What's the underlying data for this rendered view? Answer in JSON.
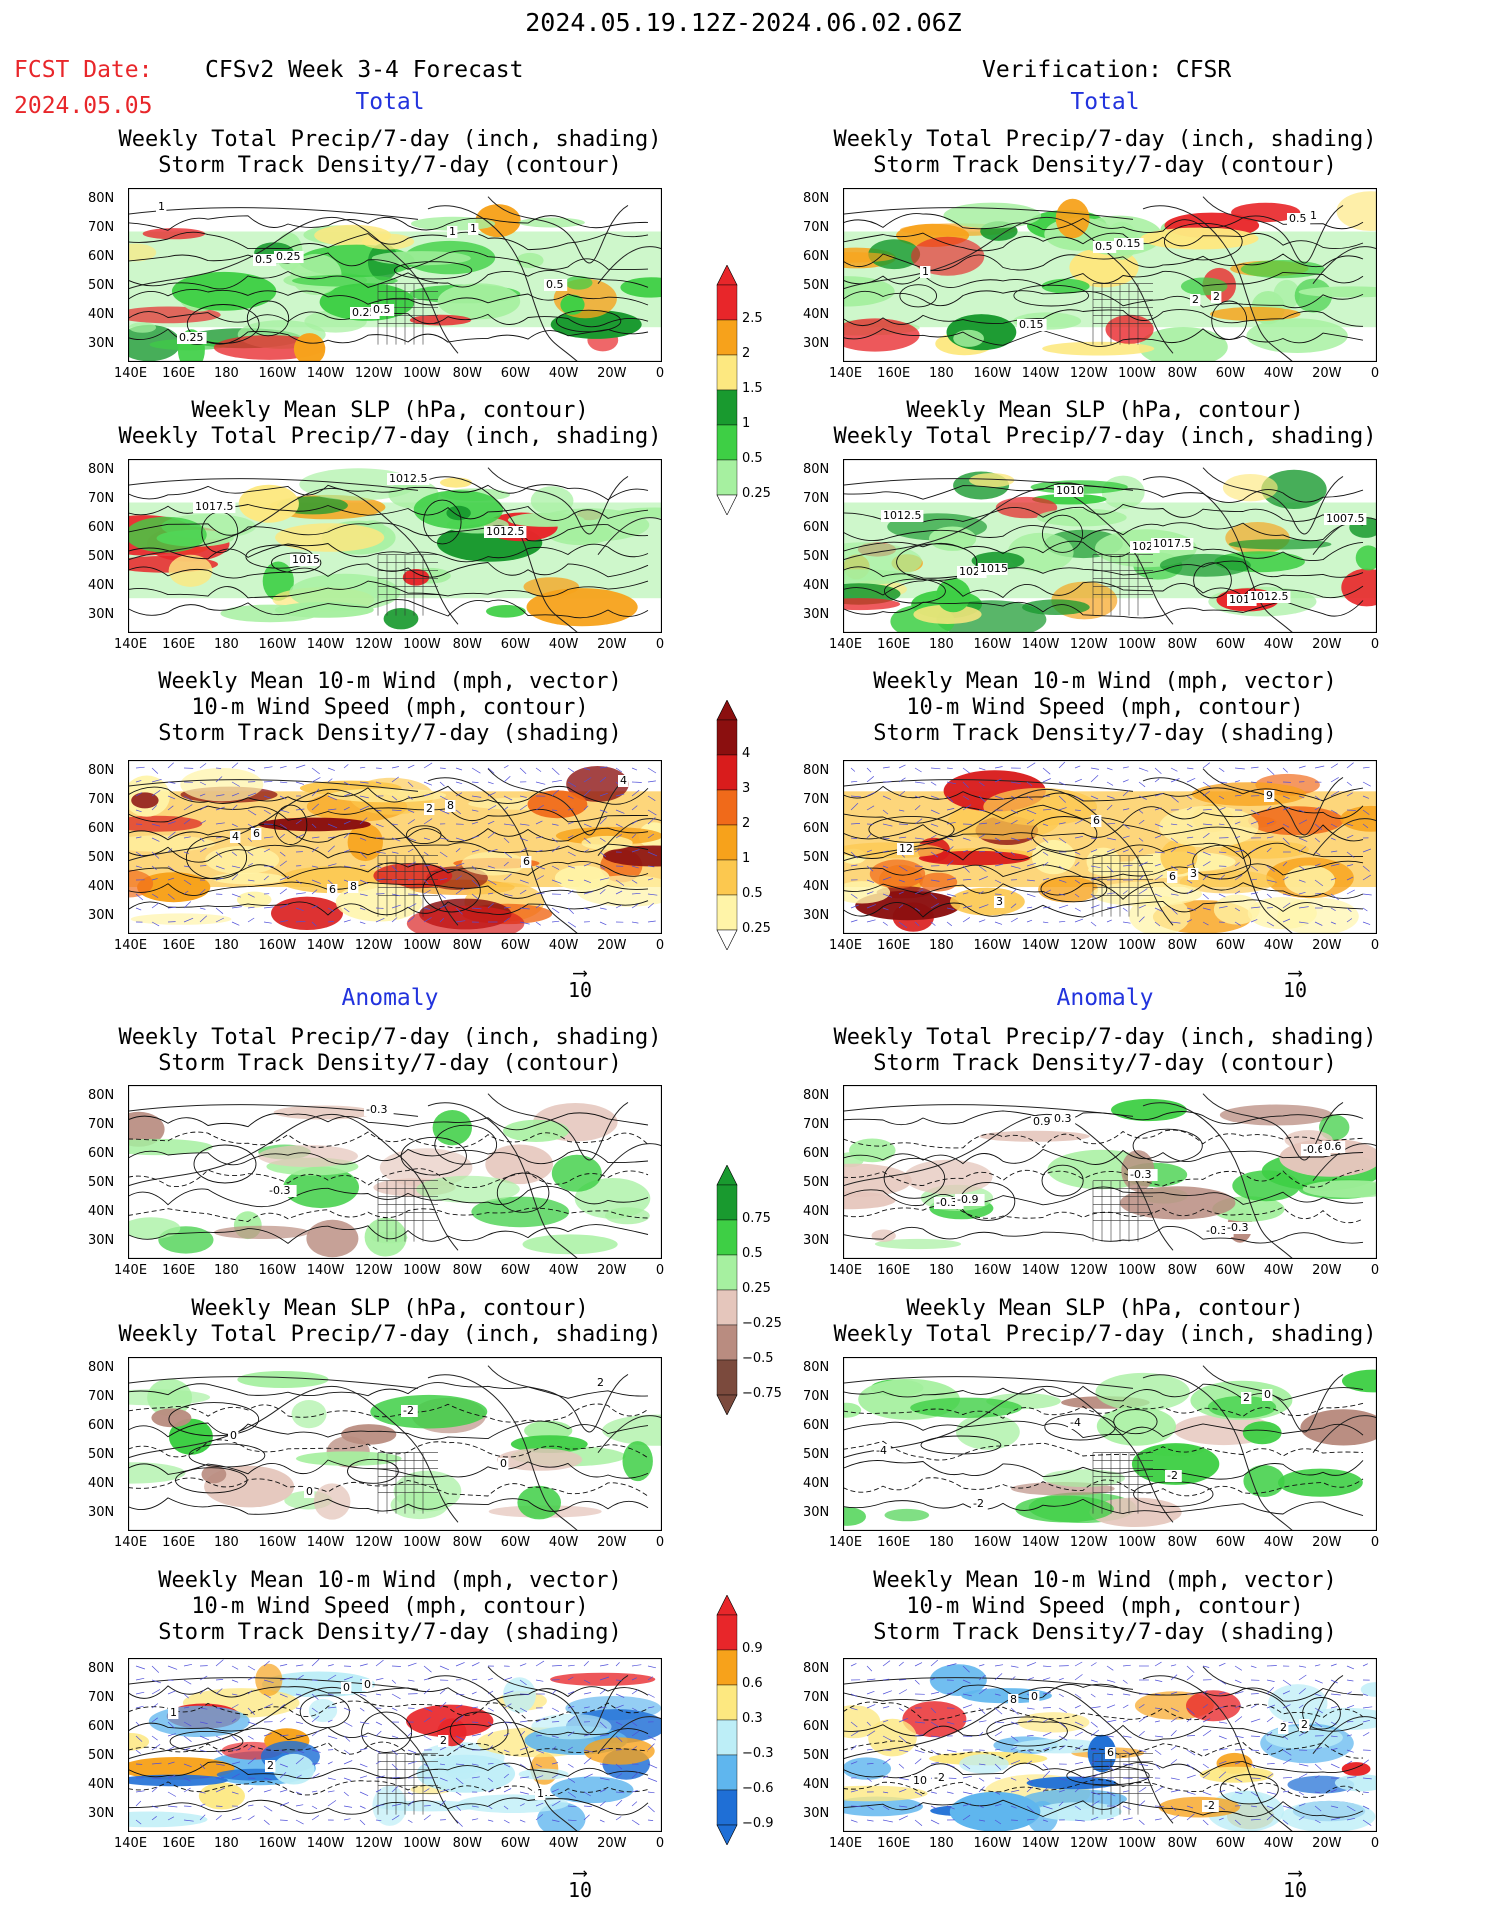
{
  "header": {
    "date_range": "2024.05.19.12Z-2024.06.02.06Z",
    "fcst_label": "FCST Date:",
    "fcst_date": "2024.05.05",
    "left_model": "CFSv2 Week 3-4 Forecast",
    "right_model": "Verification: CFSR"
  },
  "sections": {
    "total": "Total",
    "anomaly": "Anomaly"
  },
  "titles": {
    "precip_storm": [
      "Weekly Total Precip/7-day (inch, shading)",
      "Storm Track Density/7-day (contour)"
    ],
    "slp_precip": [
      "Weekly Mean SLP (hPa, contour)",
      "Weekly Total Precip/7-day (inch, shading)"
    ],
    "wind_storm": [
      "Weekly Mean 10-m Wind (mph, vector)",
      "10-m Wind Speed (mph, contour)",
      "Storm Track Density/7-day (shading)"
    ]
  },
  "axes": {
    "lat_labels": [
      "80N",
      "70N",
      "60N",
      "50N",
      "40N",
      "30N"
    ],
    "lon_labels": [
      "140E",
      "160E",
      "180",
      "160W",
      "140W",
      "120W",
      "100W",
      "80W",
      "60W",
      "40W",
      "20W",
      "0"
    ]
  },
  "vector_ref": "10",
  "colorbars": [
    {
      "labels": [
        "2.5",
        "2",
        "1.5",
        "1",
        "0.5",
        "0.25"
      ],
      "colors": [
        "#e8262a",
        "#f7a21b",
        "#fde880",
        "#199a2f",
        "#3ecf45",
        "#a6f0a0"
      ]
    },
    {
      "labels": [
        "4",
        "3",
        "2",
        "1",
        "0.5",
        "0.25"
      ],
      "colors": [
        "#8b0f0f",
        "#d91c1c",
        "#f06a1a",
        "#f7a21b",
        "#fcc84f",
        "#fff4a8"
      ]
    },
    {
      "labels": [
        "0.75",
        "0.5",
        "0.25",
        "−0.25",
        "−0.5",
        "−0.75"
      ],
      "colors": [
        "#199a2f",
        "#3ecf45",
        "#a6f0a0",
        "#e5c6bc",
        "#b98c80",
        "#7b4a3d"
      ]
    },
    {
      "labels": [
        "0.9",
        "0.6",
        "0.3",
        "−0.3",
        "−0.6",
        "−0.9"
      ],
      "colors": [
        "#e8262a",
        "#f7a21b",
        "#fde880",
        "#bdeef7",
        "#5fb6ee",
        "#1f6fd6"
      ]
    }
  ],
  "maps": [
    {
      "id": "fcst-total-precip-storm",
      "shading": "precip",
      "contours": [
        "1",
        "0.5",
        "0.25",
        "1",
        "0.5",
        "0.25",
        "0.25",
        "0.5",
        "1"
      ]
    },
    {
      "id": "fcst-total-slp-precip",
      "shading": "precip",
      "contours": [
        "1017.5",
        "1015",
        "1012.5",
        "1012.5"
      ]
    },
    {
      "id": "fcst-total-wind-storm",
      "shading": "storm",
      "contours": [
        "4",
        "6",
        "2",
        "6",
        "4",
        "6",
        "8",
        "8"
      ]
    },
    {
      "id": "fcst-anom-precip-storm",
      "shading": "anom",
      "contours": [
        "-0.3",
        "-0.3"
      ]
    },
    {
      "id": "fcst-anom-slp-precip",
      "shading": "anom",
      "contours": [
        "0",
        "-2",
        "0",
        "2",
        "0"
      ]
    },
    {
      "id": "fcst-anom-wind-storm",
      "shading": "windanom",
      "contours": [
        "0",
        "2",
        "1",
        "1",
        "2",
        "0"
      ]
    },
    {
      "id": "ver-total-precip-storm",
      "shading": "precip",
      "contours": [
        "0.5",
        "2",
        "0.5",
        "1",
        "0.15",
        "0.15",
        "2",
        "1"
      ]
    },
    {
      "id": "ver-total-slp-precip",
      "shading": "precip",
      "contours": [
        "1020",
        "1015",
        "1007.5",
        "1020",
        "1010",
        "1017.5",
        "1012.5",
        "1012.5",
        "1015"
      ]
    },
    {
      "id": "ver-total-wind-storm",
      "shading": "storm",
      "contours": [
        "6",
        "9",
        "12",
        "3",
        "6",
        "3"
      ]
    },
    {
      "id": "ver-anom-precip-storm",
      "shading": "anom",
      "contours": [
        "-0.3",
        "-0.6",
        "-0.3",
        "0.9",
        "-0.3",
        "-0.3",
        "0.6",
        "-0.9",
        "0.3"
      ]
    },
    {
      "id": "ver-anom-slp-precip",
      "shading": "anom",
      "contours": [
        "2",
        "-4",
        "-2",
        "-4",
        "-2",
        "0"
      ]
    },
    {
      "id": "ver-anom-wind-storm",
      "shading": "windanom",
      "contours": [
        "2",
        "10",
        "8",
        "6",
        "-2",
        "2",
        "-2",
        "0"
      ]
    }
  ]
}
